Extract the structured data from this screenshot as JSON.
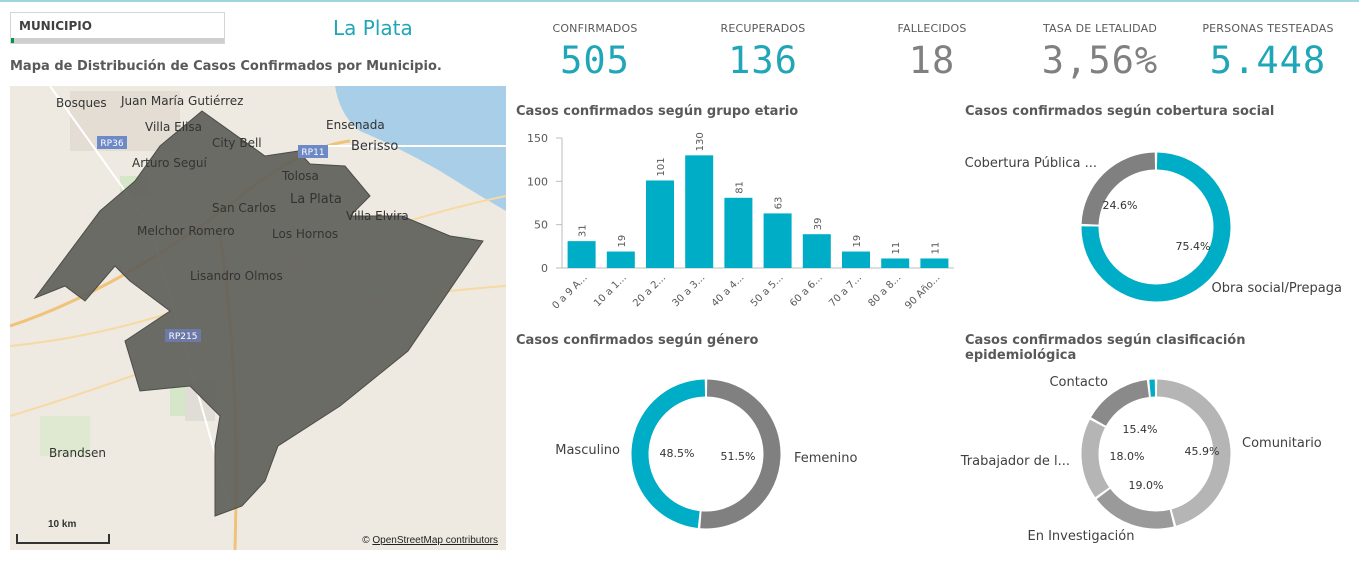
{
  "filter": {
    "label": "MUNICIPIO"
  },
  "selected_value": "La Plata",
  "map": {
    "title": "Mapa de Distribución de Casos Confirmados por Municipio.",
    "attribution": "OpenStreetMap contributors",
    "attribution_prefix": "© ",
    "scale_label": "10 km",
    "places": [
      "Bosques",
      "Juan María Gutiérrez",
      "Villa Elisa",
      "City Bell",
      "Arturo Seguí",
      "Ensenada",
      "Berisso",
      "Tolosa",
      "La Plata",
      "San Carlos",
      "Villa Elvira",
      "Melchor Romero",
      "Los Hornos",
      "Lisandro Olmos",
      "Brandsen"
    ],
    "route_labels": [
      "RP36",
      "RP11",
      "RP215"
    ]
  },
  "kpis": [
    {
      "title": "CONFIRMADOS",
      "value": "505",
      "color": "#1fa6b7"
    },
    {
      "title": "RECUPERADOS",
      "value": "136",
      "color": "#1fa6b7"
    },
    {
      "title": "FALLECIDOS",
      "value": "18",
      "color": "#808080"
    },
    {
      "title": "TASA DE LETALIDAD",
      "value": "3,56%",
      "color": "#808080"
    },
    {
      "title": "PERSONAS TESTEADAS",
      "value": "5.448",
      "color": "#1fa6b7"
    }
  ],
  "chart_data": [
    {
      "type": "bar",
      "title": "Casos confirmados según grupo etario",
      "categories": [
        "0 a 9 A...",
        "10 a 1...",
        "20 a 2...",
        "30 a 3...",
        "40 a 4...",
        "50 a 5...",
        "60 a 6...",
        "70 a 7...",
        "80 a 8...",
        "90 Año..."
      ],
      "values": [
        31,
        19,
        101,
        130,
        81,
        63,
        39,
        19,
        11,
        11
      ],
      "yticks": [
        0,
        50,
        100,
        150
      ],
      "ylim": [
        0,
        150
      ],
      "color": "#00adc6"
    },
    {
      "type": "pie",
      "title": "Casos confirmados según cobertura social",
      "slices": [
        {
          "label": "Obra social/Prepaga",
          "value": 75.4,
          "display": "75.4%",
          "color": "#00adc6"
        },
        {
          "label": "Cobertura Pública ...",
          "value": 24.6,
          "display": "24.6%",
          "color": "#808080"
        }
      ]
    },
    {
      "type": "pie",
      "title": "Casos confirmados según género",
      "slices": [
        {
          "label": "Femenino",
          "value": 51.5,
          "display": "51.5%",
          "color": "#808080"
        },
        {
          "label": "Masculino",
          "value": 48.5,
          "display": "48.5%",
          "color": "#00adc6"
        }
      ]
    },
    {
      "type": "pie",
      "title": "Casos confirmados según clasificación epidemiológica",
      "slices": [
        {
          "label": "Comunitario",
          "value": 45.9,
          "display": "45.9%",
          "color": "#b5b5b5"
        },
        {
          "label": "En Investigación",
          "value": 19.0,
          "display": "19.0%",
          "color": "#9a9a9a"
        },
        {
          "label": "Trabajador de l...",
          "value": 18.0,
          "display": "18.0%",
          "color": "#b5b5b5"
        },
        {
          "label": "Contacto",
          "value": 15.4,
          "display": "15.4%",
          "color": "#8a8a8a"
        },
        {
          "label": "",
          "value": 1.7,
          "display": "",
          "color": "#00adc6"
        }
      ]
    }
  ]
}
